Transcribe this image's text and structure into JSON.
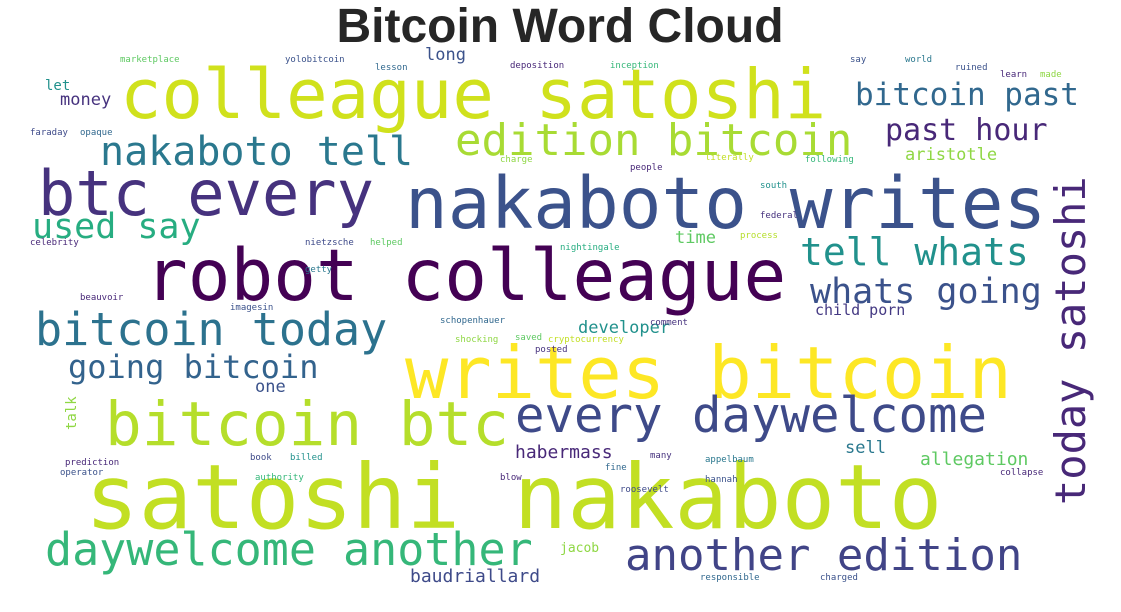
{
  "title": "Bitcoin Word Cloud",
  "words": [
    {
      "text": "colleague satoshi",
      "color": "#d0e11c"
    },
    {
      "text": "nakaboto writes",
      "color": "#3b528b"
    },
    {
      "text": "robot colleague",
      "color": "#440154"
    },
    {
      "text": "btc every",
      "color": "#46327e"
    },
    {
      "text": "writes bitcoin",
      "color": "#fde725"
    },
    {
      "text": "satoshi nakaboto",
      "color": "#c2df23"
    },
    {
      "text": "bitcoin btc",
      "color": "#b5de2b"
    },
    {
      "text": "every daywelcome",
      "color": "#3e4a89"
    },
    {
      "text": "edition bitcoin",
      "color": "#a8db34"
    },
    {
      "text": "nakaboto tell",
      "color": "#2a788e"
    },
    {
      "text": "bitcoin past",
      "color": "#31688e"
    },
    {
      "text": "past hour",
      "color": "#482878"
    },
    {
      "text": "today satoshi",
      "color": "#482878"
    },
    {
      "text": "tell whats",
      "color": "#21918c"
    },
    {
      "text": "whats going",
      "color": "#3b528b"
    },
    {
      "text": "bitcoin today",
      "color": "#2c728e"
    },
    {
      "text": "going bitcoin",
      "color": "#33638d"
    },
    {
      "text": "used say",
      "color": "#27ad81"
    },
    {
      "text": "daywelcome another",
      "color": "#35b779"
    },
    {
      "text": "another edition",
      "color": "#414487"
    },
    {
      "text": "time",
      "color": "#5ec962"
    },
    {
      "text": "developer",
      "color": "#21918c"
    },
    {
      "text": "child porn",
      "color": "#443983"
    },
    {
      "text": "aristotle",
      "color": "#8fd744"
    },
    {
      "text": "allegation",
      "color": "#5ec962"
    },
    {
      "text": "habermass",
      "color": "#482878"
    },
    {
      "text": "sell",
      "color": "#2a788e"
    },
    {
      "text": "jacob",
      "color": "#8fd744"
    },
    {
      "text": "baudriallard",
      "color": "#3e4a89"
    },
    {
      "text": "money",
      "color": "#46327e"
    },
    {
      "text": "let",
      "color": "#21918c"
    },
    {
      "text": "long",
      "color": "#3b528b"
    },
    {
      "text": "one",
      "color": "#3b528b"
    },
    {
      "text": "talk",
      "color": "#8fd744"
    },
    {
      "text": "marketplace",
      "color": "#5ec962"
    },
    {
      "text": "yolobitcoin",
      "color": "#3b528b"
    },
    {
      "text": "lesson",
      "color": "#31688e"
    },
    {
      "text": "deposition",
      "color": "#482878"
    },
    {
      "text": "inception",
      "color": "#35b779"
    },
    {
      "text": "say",
      "color": "#3b528b"
    },
    {
      "text": "world",
      "color": "#2a788e"
    },
    {
      "text": "ruined",
      "color": "#3b528b"
    },
    {
      "text": "learn",
      "color": "#482878"
    },
    {
      "text": "made",
      "color": "#8fd744"
    },
    {
      "text": "faraday",
      "color": "#3e4a89"
    },
    {
      "text": "opaque",
      "color": "#31688e"
    },
    {
      "text": "people",
      "color": "#482878"
    },
    {
      "text": "literally",
      "color": "#c2df23"
    },
    {
      "text": "following",
      "color": "#35b779"
    },
    {
      "text": "south",
      "color": "#21918c"
    },
    {
      "text": "federal",
      "color": "#46327e"
    },
    {
      "text": "process",
      "color": "#b5de2b"
    },
    {
      "text": "nietzsche",
      "color": "#3e4a89"
    },
    {
      "text": "celebrity",
      "color": "#482878"
    },
    {
      "text": "getty",
      "color": "#2a788e"
    },
    {
      "text": "helped",
      "color": "#5ec962"
    },
    {
      "text": "nightingale",
      "color": "#27ad81"
    },
    {
      "text": "beauvoir",
      "color": "#482878"
    },
    {
      "text": "imagesin",
      "color": "#3b528b"
    },
    {
      "text": "schopenhauer",
      "color": "#31688e"
    },
    {
      "text": "shocking",
      "color": "#8fd744"
    },
    {
      "text": "saved",
      "color": "#5ec962"
    },
    {
      "text": "posted",
      "color": "#46327e"
    },
    {
      "text": "prediction",
      "color": "#482878"
    },
    {
      "text": "operator",
      "color": "#3b528b"
    },
    {
      "text": "authority",
      "color": "#35b779"
    },
    {
      "text": "book",
      "color": "#3e4a89"
    },
    {
      "text": "billed",
      "color": "#21918c"
    },
    {
      "text": "blow",
      "color": "#482878"
    },
    {
      "text": "fine",
      "color": "#31688e"
    },
    {
      "text": "hannah",
      "color": "#3b528b"
    },
    {
      "text": "many",
      "color": "#46327e"
    },
    {
      "text": "appelbaum",
      "color": "#2a788e"
    },
    {
      "text": "roosevelt",
      "color": "#3e4a89"
    },
    {
      "text": "responsible",
      "color": "#31688e"
    },
    {
      "text": "charged",
      "color": "#3b528b"
    },
    {
      "text": "collapse",
      "color": "#482878"
    },
    {
      "text": "charge",
      "color": "#8fd744"
    },
    {
      "text": "cryptocurrency",
      "color": "#c2df23"
    },
    {
      "text": "comment",
      "color": "#46327e"
    }
  ]
}
